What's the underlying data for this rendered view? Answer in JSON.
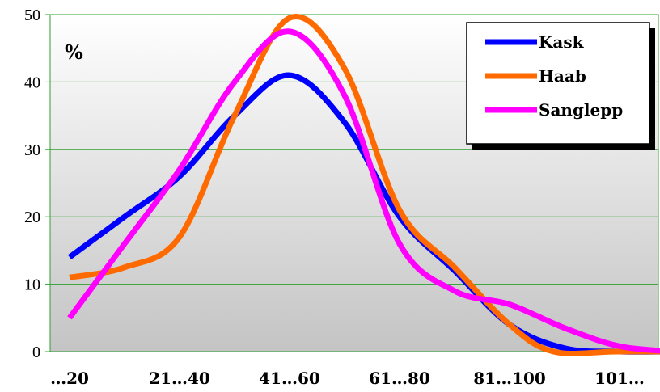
{
  "chart_data": {
    "type": "line",
    "categories": [
      "…20",
      "21…40",
      "41…60",
      "61…80",
      "81…100",
      "101…"
    ],
    "ylabel": "%",
    "ylim": [
      0,
      50
    ],
    "y_ticks": [
      0,
      10,
      20,
      30,
      40,
      50
    ],
    "grid": true,
    "legend_position": "top-right",
    "series": [
      {
        "name": "Kask",
        "color": "#0000ff",
        "points": [
          [
            0,
            14
          ],
          [
            0.5,
            20
          ],
          [
            1,
            26
          ],
          [
            1.5,
            35
          ],
          [
            2,
            41
          ],
          [
            2.5,
            34
          ],
          [
            3,
            20
          ],
          [
            3.5,
            12
          ],
          [
            4,
            4
          ],
          [
            4.5,
            0.5
          ],
          [
            5,
            0
          ],
          [
            5.5,
            0
          ],
          [
            6,
            0
          ]
        ]
      },
      {
        "name": "Haab",
        "color": "#ff6a00",
        "points": [
          [
            0,
            11
          ],
          [
            0.5,
            12.5
          ],
          [
            1,
            17
          ],
          [
            1.5,
            35
          ],
          [
            2,
            49.5
          ],
          [
            2.5,
            42
          ],
          [
            3,
            21
          ],
          [
            3.5,
            12.5
          ],
          [
            4,
            4
          ],
          [
            4.4,
            0
          ],
          [
            5,
            0
          ],
          [
            6,
            0
          ]
        ]
      },
      {
        "name": "Sanglepp",
        "color": "#ff00ff",
        "points": [
          [
            0,
            5
          ],
          [
            0.5,
            16
          ],
          [
            1,
            27
          ],
          [
            1.5,
            40
          ],
          [
            2,
            47.5
          ],
          [
            2.5,
            38
          ],
          [
            3,
            16
          ],
          [
            3.5,
            9
          ],
          [
            4,
            7
          ],
          [
            4.5,
            3.5
          ],
          [
            5,
            0.8
          ],
          [
            5.5,
            0
          ]
        ]
      }
    ]
  }
}
